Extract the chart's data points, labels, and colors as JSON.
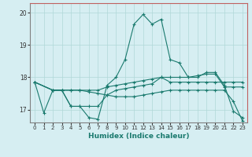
{
  "title": "",
  "xlabel": "Humidex (Indice chaleur)",
  "ylabel": "",
  "xlim": [
    -0.5,
    23.5
  ],
  "ylim": [
    16.6,
    20.3
  ],
  "yticks": [
    17,
    18,
    19,
    20
  ],
  "xticks": [
    0,
    1,
    2,
    3,
    4,
    5,
    6,
    7,
    8,
    9,
    10,
    11,
    12,
    13,
    14,
    15,
    16,
    17,
    18,
    19,
    20,
    21,
    22,
    23
  ],
  "bg_color": "#d6eef2",
  "line_color": "#1a7a6e",
  "grid_color": "#b0d8d8",
  "spine_top_right_color": "#c06060",
  "spine_left_bottom_color": "#808080",
  "lines": [
    {
      "x": [
        0,
        1,
        2,
        3,
        4,
        5,
        6,
        7,
        8,
        9,
        10,
        11,
        12,
        13,
        14,
        15,
        16,
        17,
        18,
        19,
        20,
        21,
        22,
        23
      ],
      "y": [
        17.85,
        16.9,
        17.6,
        17.6,
        17.1,
        17.1,
        16.75,
        16.7,
        17.75,
        18.0,
        18.55,
        19.65,
        19.95,
        19.65,
        19.8,
        18.55,
        18.45,
        18.0,
        18.0,
        18.15,
        18.15,
        17.75,
        16.95,
        16.75
      ]
    },
    {
      "x": [
        0,
        2,
        3,
        4,
        5,
        6,
        7,
        8,
        9,
        10,
        11,
        12,
        13,
        14,
        15,
        16,
        17,
        18,
        19,
        20,
        21,
        22,
        23
      ],
      "y": [
        17.85,
        17.6,
        17.6,
        17.6,
        17.6,
        17.6,
        17.6,
        17.7,
        17.75,
        17.8,
        17.85,
        17.9,
        17.95,
        18.0,
        18.0,
        18.0,
        18.0,
        18.05,
        18.1,
        18.1,
        17.7,
        17.7,
        17.7
      ]
    },
    {
      "x": [
        0,
        2,
        3,
        4,
        5,
        6,
        7,
        8,
        9,
        10,
        11,
        12,
        13,
        14,
        15,
        16,
        17,
        18,
        19,
        20,
        21,
        22,
        23
      ],
      "y": [
        17.85,
        17.6,
        17.6,
        17.6,
        17.6,
        17.55,
        17.5,
        17.45,
        17.4,
        17.4,
        17.4,
        17.45,
        17.5,
        17.55,
        17.6,
        17.6,
        17.6,
        17.6,
        17.6,
        17.6,
        17.6,
        17.25,
        16.65
      ]
    },
    {
      "x": [
        0,
        2,
        3,
        4,
        5,
        6,
        7,
        8,
        9,
        10,
        11,
        12,
        13,
        14,
        15,
        16,
        17,
        18,
        19,
        20,
        21,
        22,
        23
      ],
      "y": [
        17.85,
        17.6,
        17.6,
        17.1,
        17.1,
        17.1,
        17.1,
        17.45,
        17.6,
        17.65,
        17.7,
        17.75,
        17.8,
        18.0,
        17.85,
        17.85,
        17.85,
        17.85,
        17.85,
        17.85,
        17.85,
        17.85,
        17.85
      ]
    }
  ]
}
